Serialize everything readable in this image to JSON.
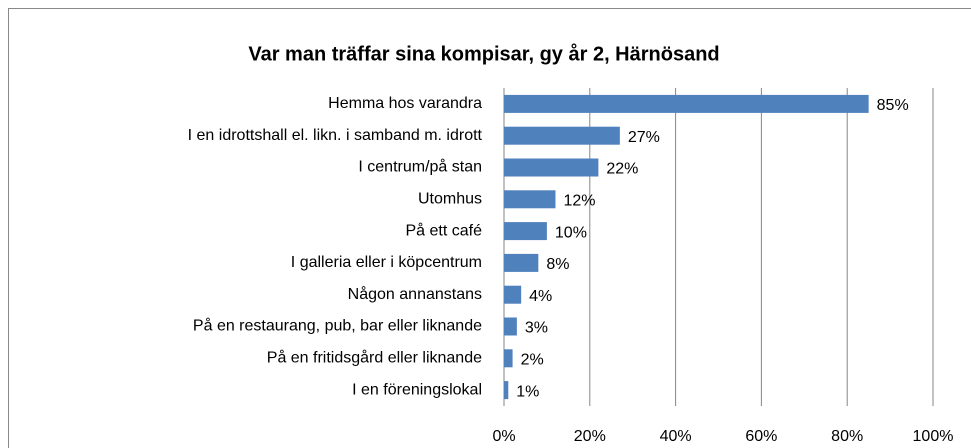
{
  "chart_data": {
    "type": "bar",
    "orientation": "horizontal",
    "title": "Var man träffar sina kompisar, gy år 2, Härnösand",
    "categories": [
      "Hemma hos varandra",
      "I en idrottshall el. likn. i samband m. idrott",
      "I centrum/på stan",
      "Utomhus",
      "På ett café",
      "I galleria eller i köpcentrum",
      "Någon annanstans",
      "På en restaurang, pub, bar eller liknande",
      "På en fritidsgård eller liknande",
      "I en föreningslokal"
    ],
    "values": [
      85,
      27,
      22,
      12,
      10,
      8,
      4,
      3,
      2,
      1
    ],
    "value_labels": [
      "85%",
      "27%",
      "22%",
      "12%",
      "10%",
      "8%",
      "4%",
      "3%",
      "2%",
      "1%"
    ],
    "color": "#4f81bd",
    "xlim": [
      0,
      100
    ],
    "xticks": [
      {
        "value": 0,
        "label": "0%"
      },
      {
        "value": 20,
        "label": "20%"
      },
      {
        "value": 40,
        "label": "40%"
      },
      {
        "value": 60,
        "label": "60%"
      },
      {
        "value": 80,
        "label": "80%"
      },
      {
        "value": 100,
        "label": "100%"
      }
    ],
    "grid": true
  }
}
